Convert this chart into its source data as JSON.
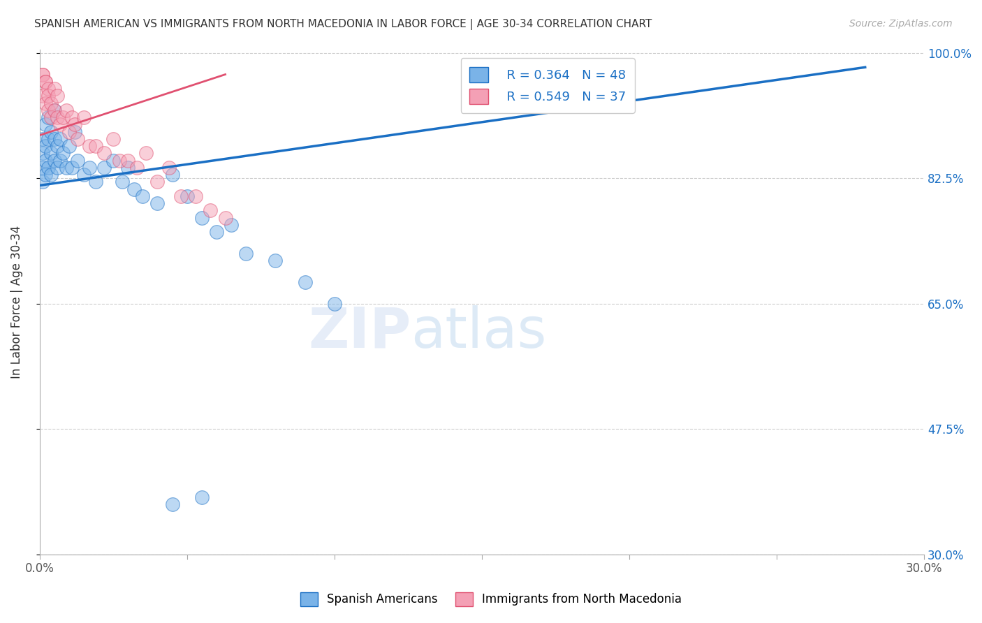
{
  "title": "SPANISH AMERICAN VS IMMIGRANTS FROM NORTH MACEDONIA IN LABOR FORCE | AGE 30-34 CORRELATION CHART",
  "source": "Source: ZipAtlas.com",
  "ylabel": "In Labor Force | Age 30-34",
  "xlim": [
    0.0,
    0.3
  ],
  "ylim": [
    0.3,
    1.005
  ],
  "yticks": [
    0.3,
    0.475,
    0.65,
    0.825,
    1.0
  ],
  "ytick_labels": [
    "30.0%",
    "47.5%",
    "65.0%",
    "82.5%",
    "100.0%"
  ],
  "xticks": [
    0.0,
    0.05,
    0.1,
    0.15,
    0.2,
    0.25,
    0.3
  ],
  "xtick_labels": [
    "0.0%",
    "",
    "",
    "",
    "",
    "",
    "30.0%"
  ],
  "blue_R": 0.364,
  "blue_N": 48,
  "pink_R": 0.549,
  "pink_N": 37,
  "blue_color": "#7ab3e8",
  "pink_color": "#f4a0b5",
  "trendline_blue": "#1a6fc4",
  "trendline_pink": "#e05070",
  "watermark_zip": "ZIP",
  "watermark_atlas": "atlas",
  "blue_legend": "Spanish Americans",
  "pink_legend": "Immigrants from North Macedonia",
  "blue_scatter_x": [
    0.001,
    0.001,
    0.001,
    0.001,
    0.002,
    0.002,
    0.002,
    0.002,
    0.003,
    0.003,
    0.003,
    0.004,
    0.004,
    0.004,
    0.005,
    0.005,
    0.005,
    0.006,
    0.006,
    0.007,
    0.007,
    0.008,
    0.009,
    0.01,
    0.011,
    0.012,
    0.013,
    0.015,
    0.017,
    0.019,
    0.022,
    0.025,
    0.028,
    0.03,
    0.032,
    0.035,
    0.04,
    0.045,
    0.05,
    0.055,
    0.06,
    0.065,
    0.07,
    0.08,
    0.09,
    0.1,
    0.045,
    0.055
  ],
  "blue_scatter_y": [
    0.88,
    0.86,
    0.84,
    0.82,
    0.9,
    0.87,
    0.85,
    0.83,
    0.91,
    0.88,
    0.84,
    0.89,
    0.86,
    0.83,
    0.92,
    0.88,
    0.85,
    0.87,
    0.84,
    0.88,
    0.85,
    0.86,
    0.84,
    0.87,
    0.84,
    0.89,
    0.85,
    0.83,
    0.84,
    0.82,
    0.84,
    0.85,
    0.82,
    0.84,
    0.81,
    0.8,
    0.79,
    0.83,
    0.8,
    0.77,
    0.75,
    0.76,
    0.72,
    0.71,
    0.68,
    0.65,
    0.37,
    0.38
  ],
  "pink_scatter_x": [
    0.001,
    0.001,
    0.001,
    0.002,
    0.002,
    0.002,
    0.003,
    0.003,
    0.003,
    0.004,
    0.004,
    0.005,
    0.005,
    0.006,
    0.006,
    0.007,
    0.008,
    0.009,
    0.01,
    0.011,
    0.012,
    0.013,
    0.015,
    0.017,
    0.019,
    0.022,
    0.025,
    0.027,
    0.03,
    0.033,
    0.036,
    0.04,
    0.044,
    0.048,
    0.053,
    0.058,
    0.063
  ],
  "pink_scatter_y": [
    0.97,
    0.94,
    0.97,
    0.96,
    0.93,
    0.96,
    0.95,
    0.92,
    0.94,
    0.93,
    0.91,
    0.95,
    0.92,
    0.91,
    0.94,
    0.9,
    0.91,
    0.92,
    0.89,
    0.91,
    0.9,
    0.88,
    0.91,
    0.87,
    0.87,
    0.86,
    0.88,
    0.85,
    0.85,
    0.84,
    0.86,
    0.82,
    0.84,
    0.8,
    0.8,
    0.78,
    0.77
  ],
  "blue_trendline_x": [
    0.0,
    0.28
  ],
  "blue_trendline_y": [
    0.815,
    0.98
  ],
  "pink_trendline_x": [
    0.0,
    0.063
  ],
  "pink_trendline_y": [
    0.885,
    0.97
  ]
}
